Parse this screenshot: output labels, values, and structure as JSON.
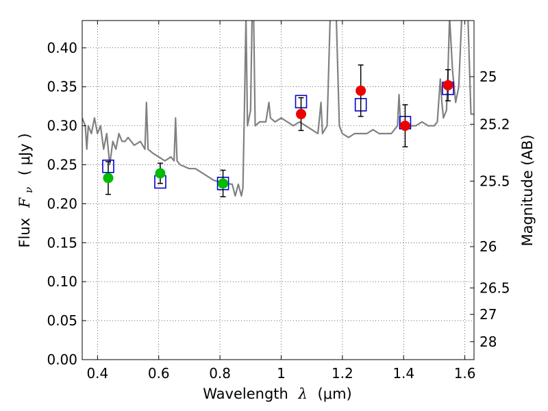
{
  "chart_data": {
    "type": "scatter",
    "xlabel": "Wavelength",
    "xlabel_symbol": "λ",
    "xlabel_unit": "(μm)",
    "ylabel": "Flux",
    "ylabel_symbol": "F",
    "ylabel_subscript": "ν",
    "ylabel_unit": "( μJy )",
    "y2label": "Magnitude (AB)",
    "xlim": [
      0.35,
      1.63
    ],
    "ylim": [
      0.0,
      0.435
    ],
    "grid": true,
    "x_ticks": [
      0.4,
      0.6,
      0.8,
      1.0,
      1.2,
      1.4,
      1.6
    ],
    "x_tick_labels": [
      "0.4",
      "0.6",
      "0.8",
      "1",
      "1.2",
      "1.4",
      "1.6"
    ],
    "y_ticks": [
      0.0,
      0.05,
      0.1,
      0.15,
      0.2,
      0.25,
      0.3,
      0.35,
      0.4
    ],
    "y_tick_labels": [
      "0.00",
      "0.05",
      "0.10",
      "0.15",
      "0.20",
      "0.25",
      "0.30",
      "0.35",
      "0.40"
    ],
    "y2_ticks": [
      {
        "flux": 0.363,
        "label": "25"
      },
      {
        "flux": 0.302,
        "label": "25.2"
      },
      {
        "flux": 0.229,
        "label": "25.5"
      },
      {
        "flux": 0.145,
        "label": "26"
      },
      {
        "flux": 0.092,
        "label": "26.5"
      },
      {
        "flux": 0.058,
        "label": "27"
      },
      {
        "flux": 0.023,
        "label": "28"
      }
    ],
    "series": [
      {
        "kind": "line",
        "color": "#808080",
        "points": [
          [
            0.35,
            0.31
          ],
          [
            0.36,
            0.3
          ],
          [
            0.365,
            0.27
          ],
          [
            0.37,
            0.3
          ],
          [
            0.38,
            0.29
          ],
          [
            0.39,
            0.31
          ],
          [
            0.4,
            0.29
          ],
          [
            0.41,
            0.3
          ],
          [
            0.42,
            0.27
          ],
          [
            0.43,
            0.29
          ],
          [
            0.44,
            0.25
          ],
          [
            0.45,
            0.28
          ],
          [
            0.46,
            0.27
          ],
          [
            0.47,
            0.29
          ],
          [
            0.48,
            0.28
          ],
          [
            0.49,
            0.28
          ],
          [
            0.5,
            0.285
          ],
          [
            0.52,
            0.275
          ],
          [
            0.54,
            0.28
          ],
          [
            0.555,
            0.27
          ],
          [
            0.56,
            0.33
          ],
          [
            0.565,
            0.27
          ],
          [
            0.58,
            0.265
          ],
          [
            0.6,
            0.26
          ],
          [
            0.62,
            0.255
          ],
          [
            0.64,
            0.26
          ],
          [
            0.65,
            0.255
          ],
          [
            0.655,
            0.31
          ],
          [
            0.66,
            0.255
          ],
          [
            0.67,
            0.25
          ],
          [
            0.7,
            0.245
          ],
          [
            0.72,
            0.245
          ],
          [
            0.74,
            0.24
          ],
          [
            0.76,
            0.235
          ],
          [
            0.78,
            0.23
          ],
          [
            0.8,
            0.228
          ],
          [
            0.82,
            0.226
          ],
          [
            0.84,
            0.225
          ],
          [
            0.85,
            0.21
          ],
          [
            0.86,
            0.225
          ],
          [
            0.87,
            0.21
          ],
          [
            0.875,
            0.22
          ],
          [
            0.88,
            0.32
          ],
          [
            0.885,
            0.44
          ],
          [
            0.89,
            0.3
          ],
          [
            0.9,
            0.32
          ],
          [
            0.905,
            0.44
          ],
          [
            0.91,
            0.44
          ],
          [
            0.915,
            0.3
          ],
          [
            0.93,
            0.305
          ],
          [
            0.95,
            0.305
          ],
          [
            0.96,
            0.33
          ],
          [
            0.965,
            0.31
          ],
          [
            0.98,
            0.305
          ],
          [
            1.0,
            0.31
          ],
          [
            1.02,
            0.305
          ],
          [
            1.04,
            0.3
          ],
          [
            1.06,
            0.305
          ],
          [
            1.08,
            0.3
          ],
          [
            1.1,
            0.295
          ],
          [
            1.12,
            0.29
          ],
          [
            1.13,
            0.33
          ],
          [
            1.135,
            0.29
          ],
          [
            1.15,
            0.3
          ],
          [
            1.16,
            0.44
          ],
          [
            1.17,
            0.44
          ],
          [
            1.18,
            0.44
          ],
          [
            1.19,
            0.3
          ],
          [
            1.2,
            0.29
          ],
          [
            1.22,
            0.285
          ],
          [
            1.24,
            0.29
          ],
          [
            1.26,
            0.29
          ],
          [
            1.28,
            0.29
          ],
          [
            1.3,
            0.295
          ],
          [
            1.32,
            0.29
          ],
          [
            1.34,
            0.29
          ],
          [
            1.36,
            0.29
          ],
          [
            1.38,
            0.3
          ],
          [
            1.385,
            0.34
          ],
          [
            1.39,
            0.3
          ],
          [
            1.4,
            0.3
          ],
          [
            1.42,
            0.3
          ],
          [
            1.44,
            0.3
          ],
          [
            1.46,
            0.305
          ],
          [
            1.48,
            0.3
          ],
          [
            1.5,
            0.3
          ],
          [
            1.51,
            0.305
          ],
          [
            1.52,
            0.36
          ],
          [
            1.525,
            0.33
          ],
          [
            1.53,
            0.31
          ],
          [
            1.54,
            0.32
          ],
          [
            1.545,
            0.37
          ],
          [
            1.55,
            0.44
          ],
          [
            1.56,
            0.37
          ],
          [
            1.57,
            0.33
          ],
          [
            1.58,
            0.35
          ],
          [
            1.59,
            0.44
          ],
          [
            1.6,
            0.44
          ],
          [
            1.61,
            0.44
          ],
          [
            1.62,
            0.315
          ],
          [
            1.63,
            0.315
          ]
        ]
      },
      {
        "kind": "open-square",
        "color": "#0000cc",
        "points": [
          [
            0.435,
            0.248
          ],
          [
            0.605,
            0.228
          ],
          [
            0.81,
            0.226
          ],
          [
            1.065,
            0.331
          ],
          [
            1.26,
            0.327
          ],
          [
            1.405,
            0.304
          ],
          [
            1.545,
            0.348
          ]
        ]
      },
      {
        "kind": "filled-circle",
        "color": "#00bb00",
        "points": [
          {
            "x": 0.435,
            "y": 0.233,
            "err": 0.021
          },
          {
            "x": 0.605,
            "y": 0.239,
            "err": 0.013
          },
          {
            "x": 0.81,
            "y": 0.226,
            "err": 0.017
          }
        ]
      },
      {
        "kind": "filled-circle",
        "color": "#ee0000",
        "points": [
          {
            "x": 1.065,
            "y": 0.315,
            "err": 0.021
          },
          {
            "x": 1.26,
            "y": 0.345,
            "err": 0.033
          },
          {
            "x": 1.405,
            "y": 0.3,
            "err": 0.027
          },
          {
            "x": 1.545,
            "y": 0.352,
            "err": 0.02
          }
        ]
      }
    ]
  }
}
